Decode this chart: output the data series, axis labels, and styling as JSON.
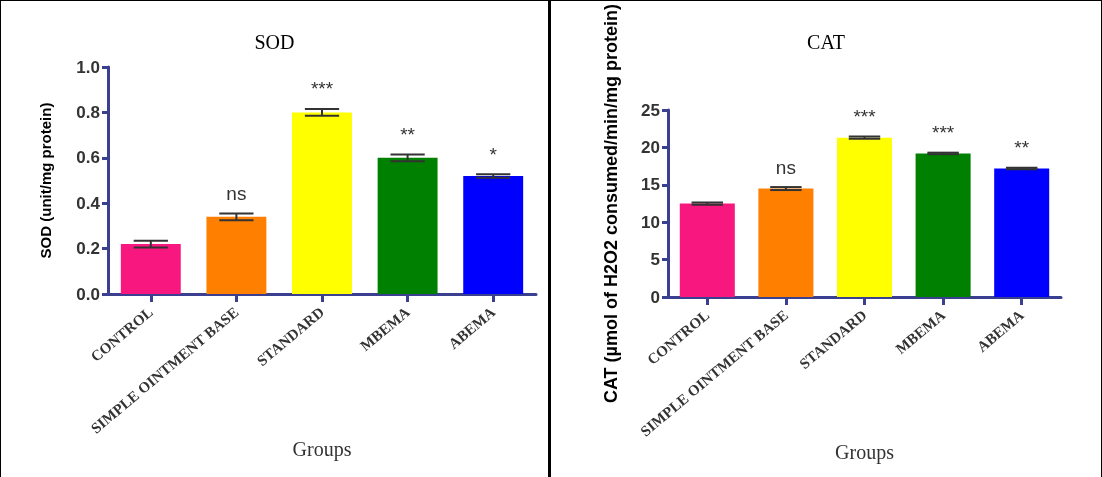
{
  "chart_data": [
    {
      "type": "bar",
      "title": "SOD",
      "xlabel": "Groups",
      "ylabel": "SOD (unit/mg protein)",
      "categories": [
        "CONTROL",
        "SIMPLE OINTMENT BASE",
        "STANDARD",
        "MBEMA",
        "ABEMA"
      ],
      "values": [
        0.22,
        0.34,
        0.8,
        0.6,
        0.52
      ],
      "errors": [
        0.015,
        0.015,
        0.015,
        0.015,
        0.008
      ],
      "colors": [
        "#f8177f",
        "#ff8000",
        "#ffff00",
        "#008000",
        "#0000ff"
      ],
      "ylim": [
        0,
        1.0
      ],
      "yticks": [
        {
          "value": 0,
          "label": "0.0"
        },
        {
          "value": 0.2,
          "label": "0.2"
        },
        {
          "value": 0.4,
          "label": "0.4"
        },
        {
          "value": 0.6,
          "label": "0.6"
        },
        {
          "value": 0.8,
          "label": "0.8"
        },
        {
          "value": 1.0,
          "label": "1.0"
        }
      ],
      "annotations": [
        "ns",
        "***",
        "**",
        "*"
      ]
    },
    {
      "type": "bar",
      "title": "CAT",
      "xlabel": "Groups",
      "ylabel": "CAT (µmol of H2O2 consumed/min/mg protein)",
      "categories": [
        "CONTROL",
        "SIMPLE OINTMENT BASE",
        "STANDARD",
        "MBEMA",
        "ABEMA"
      ],
      "values": [
        12.5,
        14.5,
        21.3,
        19.2,
        17.2
      ],
      "errors": [
        0.15,
        0.2,
        0.15,
        0.1,
        0.1
      ],
      "colors": [
        "#f8177f",
        "#ff8000",
        "#ffff00",
        "#008000",
        "#0000ff"
      ],
      "ylim": [
        0,
        25
      ],
      "yticks": [
        0,
        5,
        10,
        15,
        20,
        25
      ],
      "annotations": [
        "ns",
        "***",
        "***",
        "**"
      ]
    }
  ]
}
